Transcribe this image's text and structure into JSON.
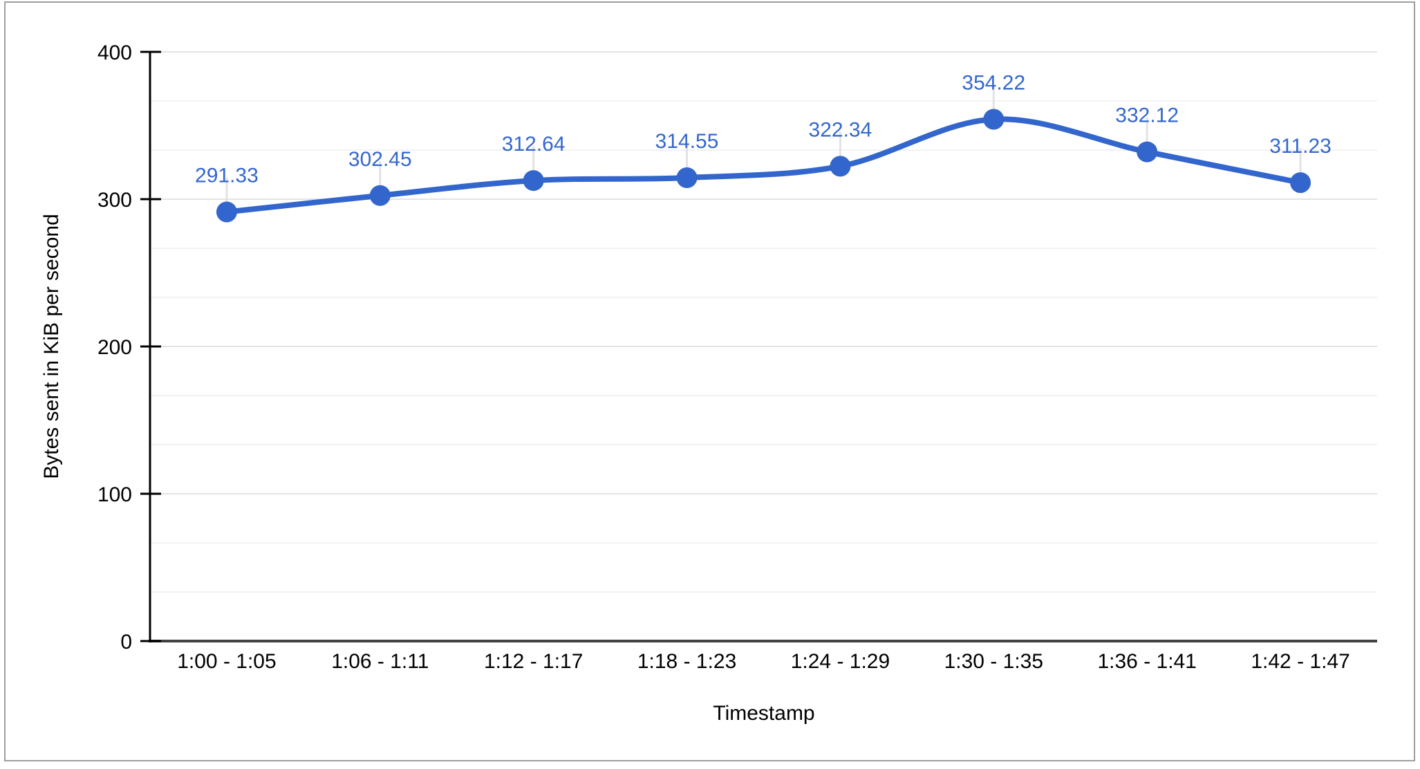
{
  "chart_data": {
    "type": "line",
    "smooth": true,
    "title": "",
    "xlabel": "Timestamp",
    "ylabel": "Bytes sent in KiB per second",
    "categories": [
      "1:00 - 1:05",
      "1:06 - 1:11",
      "1:12 - 1:17",
      "1:18 - 1:23",
      "1:24 - 1:29",
      "1:30 - 1:35",
      "1:36 - 1:41",
      "1:42 - 1:47"
    ],
    "values": [
      291.33,
      302.45,
      312.64,
      314.55,
      322.34,
      354.22,
      332.12,
      311.23
    ],
    "data_labels": [
      "291.33",
      "302.45",
      "312.64",
      "314.55",
      "322.34",
      "354.22",
      "332.12",
      "311.23"
    ],
    "ylim": [
      0,
      400
    ],
    "yticks": [
      "0",
      "100",
      "200",
      "300",
      "400"
    ],
    "ytick_values": [
      0,
      100,
      200,
      300,
      400
    ],
    "minor_gridlines_per_major": 3,
    "grid": true,
    "legend": "none",
    "marker": "circle"
  },
  "colors": {
    "series": "#3366cc",
    "data_label": "#3366cc",
    "grid_major": "#e3e3e3",
    "grid_minor": "#f2f2f2",
    "y_axis": "#000000",
    "x_axis": "#424242",
    "tick_label": "#000000",
    "axis_title": "#000000",
    "label_connector": "#e2e2e2",
    "frame_border": "#9e9e9e",
    "background": "#ffffff"
  }
}
